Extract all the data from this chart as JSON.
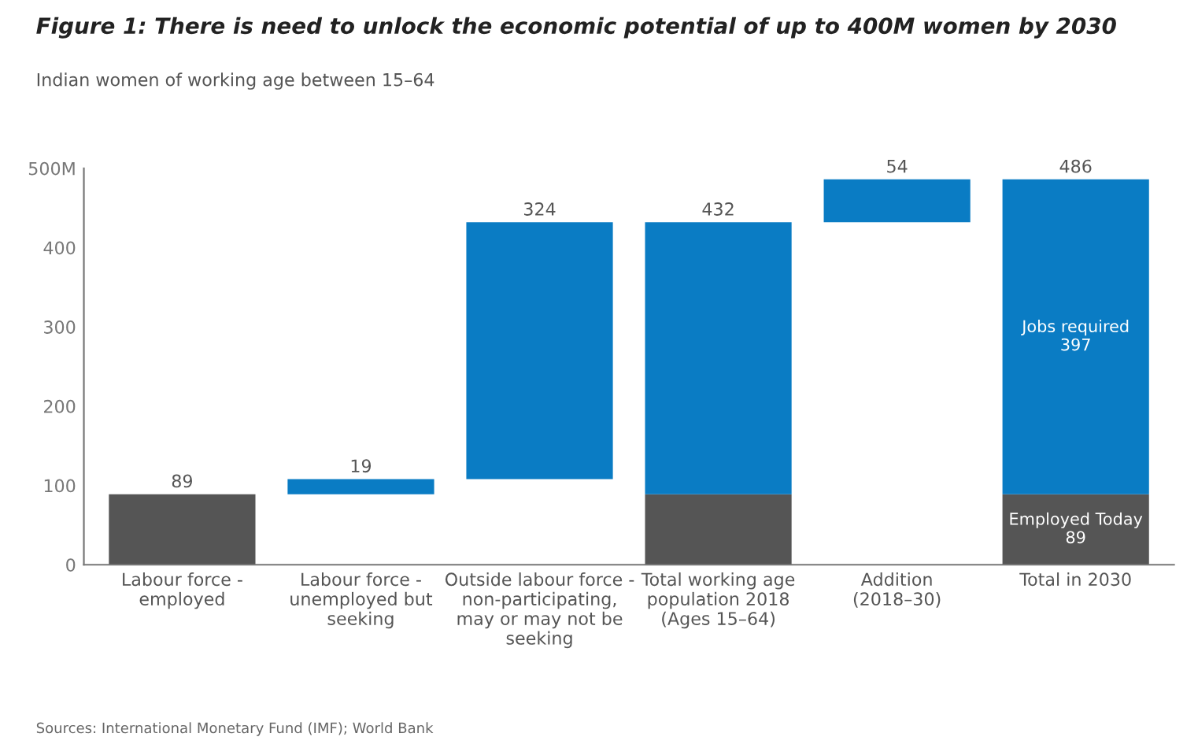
{
  "chart_data": {
    "type": "bar",
    "title": "Figure 1: There is need to unlock the economic potential of up to 400M women by 2030",
    "subtitle": "Indian women of working age between 15–64",
    "categories": [
      "Labour force -\nemployed",
      "Labour force -\nunemployed but\nseeking",
      "Outside labour force -\nnon-participating,\nmay or may not be\nseeking",
      "Total working age\npopulation 2018\n(Ages 15–64)",
      "Addition\n(2018–30)",
      "Total in 2030"
    ],
    "series": [
      {
        "color": "#555555",
        "values": [
          89,
          null,
          null,
          89,
          null,
          89
        ],
        "base": [
          0,
          null,
          null,
          0,
          null,
          0
        ],
        "value_labels": [
          null,
          null,
          null,
          null,
          null,
          "Employed Today\n89"
        ]
      },
      {
        "color": "#0a7cc4",
        "values": [
          null,
          19,
          324,
          343,
          54,
          397
        ],
        "base": [
          null,
          89,
          108,
          89,
          432,
          89
        ],
        "value_labels": [
          null,
          null,
          null,
          null,
          null,
          "Jobs required\n397"
        ]
      }
    ],
    "totals": [
      "89",
      "19",
      "324",
      "432",
      "54",
      "486"
    ],
    "ylim": [
      0,
      500
    ],
    "yticks": [
      0,
      100,
      200,
      300,
      400,
      {
        "value": 500,
        "label": "500M"
      }
    ],
    "grid": false,
    "annotations": [
      "Sources: International Monetary Fund (IMF); World Bank"
    ]
  }
}
